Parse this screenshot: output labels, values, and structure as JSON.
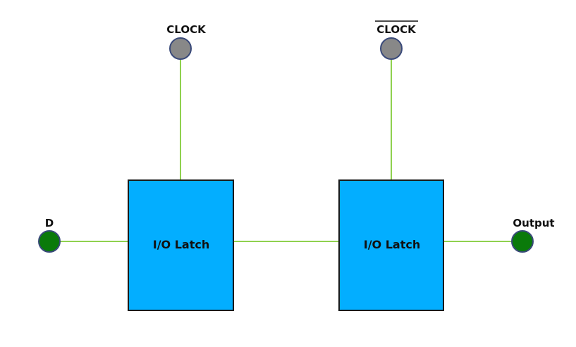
{
  "diagram": {
    "clock_label": "CLOCK",
    "clock_bar_label": "CLOCK",
    "latch1_label": "I/O Latch",
    "latch2_label": "I/O Latch",
    "input_label": "D",
    "output_label": "Output",
    "colors": {
      "wire": "#8fd14f",
      "latch_fill": "#03aeff",
      "clock_node": "#888888",
      "io_node": "#0a7a0a"
    }
  }
}
